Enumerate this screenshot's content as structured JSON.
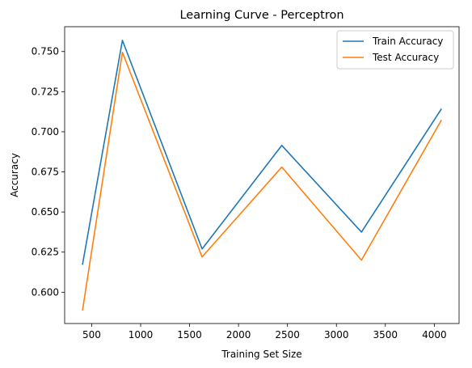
{
  "chart_data": {
    "type": "line",
    "title": "Learning Curve - Perceptron",
    "xlabel": "Training Set Size",
    "ylabel": "Accuracy",
    "x": [
      407,
      814,
      1628,
      2442,
      3256,
      4070
    ],
    "xlim": [
      224,
      4253
    ],
    "ylim": [
      0.5805,
      0.7655
    ],
    "xticks": [
      500,
      1000,
      1500,
      2000,
      2500,
      3000,
      3500,
      4000
    ],
    "xtick_labels": [
      "500",
      "1000",
      "1500",
      "2000",
      "2500",
      "3000",
      "3500",
      "4000"
    ],
    "yticks": [
      0.6,
      0.625,
      0.65,
      0.675,
      0.7,
      0.725,
      0.75
    ],
    "ytick_labels": [
      "0.600",
      "0.625",
      "0.650",
      "0.675",
      "0.700",
      "0.725",
      "0.750"
    ],
    "grid": false,
    "legend_position": "top-right",
    "series": [
      {
        "name": "Train Accuracy",
        "color": "#1f77b4",
        "values": [
          0.6175,
          0.757,
          0.627,
          0.6915,
          0.6375,
          0.714
        ]
      },
      {
        "name": "Test Accuracy",
        "color": "#ff7f0e",
        "values": [
          0.589,
          0.7495,
          0.622,
          0.678,
          0.62,
          0.707
        ]
      }
    ]
  }
}
